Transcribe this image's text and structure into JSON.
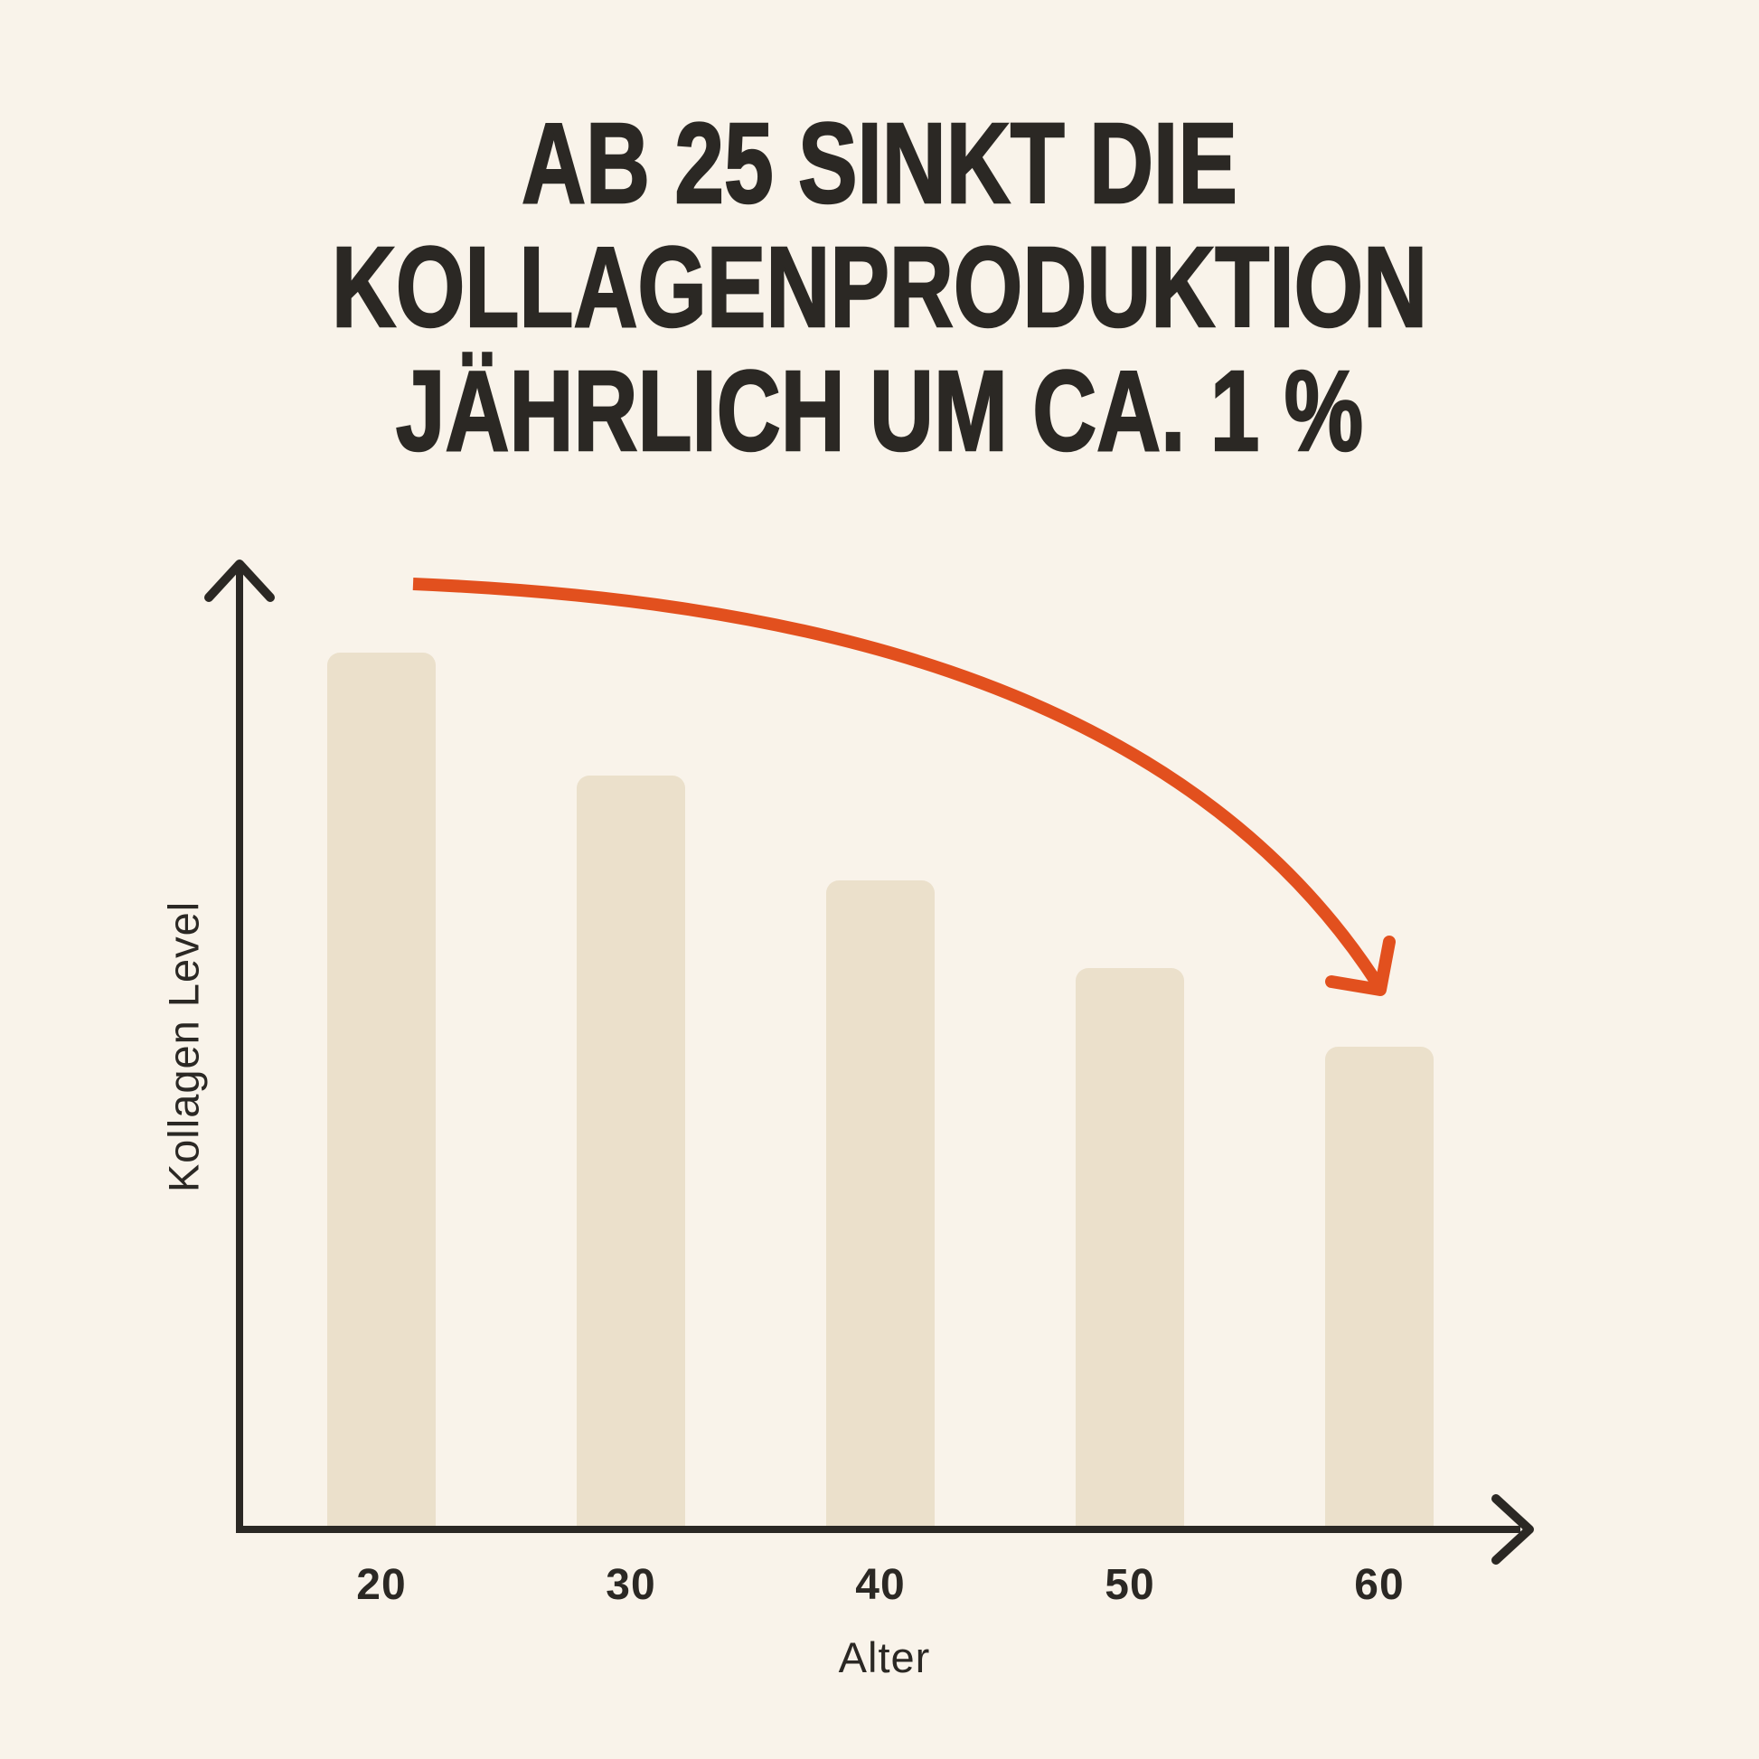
{
  "title": {
    "lines": [
      "AB 25 SINKT DIE",
      "KOLLAGENPRODUKTION",
      "JÄHRLICH UM CA. 1 %"
    ]
  },
  "colors": {
    "background": "#F9F3EA",
    "bar_fill": "#EBE0CB",
    "ink": "#2B2824",
    "accent_orange": "#E2501E"
  },
  "chart_data": {
    "type": "bar",
    "categories": [
      "20",
      "30",
      "40",
      "50",
      "60"
    ],
    "values": [
      100,
      86,
      74,
      64,
      55
    ],
    "values_note": "Relative Kollagen-Level; keine Zahlenachse sichtbar (Alter 20 = 100 gesetzt)",
    "title": "AB 25 SINKT DIE KOLLAGENPRODUKTION JÄHRLICH UM CA. 1 %",
    "xlabel": "Alter",
    "ylabel": "Kollagen Level",
    "ylim": [
      0,
      110
    ],
    "grid": false,
    "legend": false,
    "annotations": [
      {
        "type": "curved-arrow",
        "color": "#E2501E",
        "meaning": "stetig fallende Kollagenproduktion von Alter 20 bis 60"
      }
    ]
  }
}
